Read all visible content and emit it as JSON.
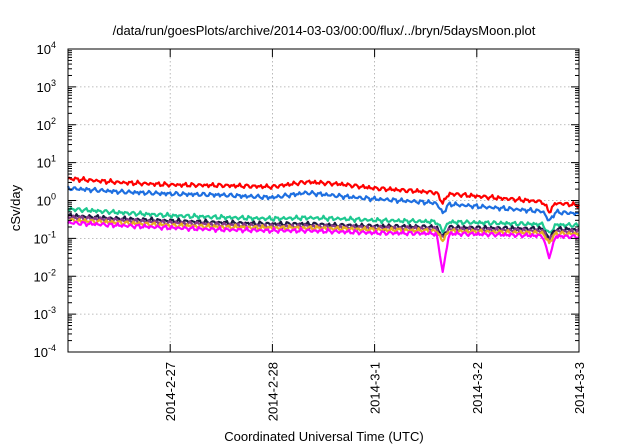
{
  "chart_data": {
    "type": "line",
    "title": "/data/run/goesPlots/archive/2014-03-03/00:00/flux/../bryn/5daysMoon.plot",
    "xlabel": "Coordinated Universal Time (UTC)",
    "ylabel": "cSv/day",
    "y_scale": "log",
    "ylim": [
      0.0001,
      10000
    ],
    "xlim": [
      "2014-02-26",
      "2014-03-03"
    ],
    "grid": true,
    "legend": "none",
    "y_ticks": [
      {
        "base": "10",
        "exp": "-4"
      },
      {
        "base": "10",
        "exp": "-3"
      },
      {
        "base": "10",
        "exp": "-2"
      },
      {
        "base": "10",
        "exp": "-1"
      },
      {
        "base": "10",
        "exp": "0"
      },
      {
        "base": "10",
        "exp": "1"
      },
      {
        "base": "10",
        "exp": "2"
      },
      {
        "base": "10",
        "exp": "3"
      },
      {
        "base": "10",
        "exp": "4"
      }
    ],
    "x_ticks": [
      {
        "date": "2014-02-27",
        "label": "2014-2-27"
      },
      {
        "date": "2014-02-28",
        "label": "2014-2-28"
      },
      {
        "date": "2014-03-01",
        "label": "2014-3-1"
      },
      {
        "date": "2014-03-02",
        "label": "2014-3-2"
      },
      {
        "date": "2014-03-03",
        "label": "2014-3-3"
      }
    ],
    "dips": [
      {
        "date": "2014-03-01 16:00",
        "min": 0.013
      },
      {
        "date": "2014-03-02 17:00",
        "min": 0.03
      }
    ],
    "series": [
      {
        "color": "#ff0000",
        "x": [
          "2014-02-26 00:00",
          "2014-02-26 12:00",
          "2014-02-27 00:00",
          "2014-02-27 12:00",
          "2014-02-28 00:00",
          "2014-02-28 08:00",
          "2014-02-28 16:00",
          "2014-03-01 00:00",
          "2014-03-01 12:00",
          "2014-03-02 00:00",
          "2014-03-02 12:00",
          "2014-03-03 00:00"
        ],
        "y": [
          3.8,
          3.0,
          2.6,
          2.5,
          2.3,
          3.1,
          2.7,
          2.1,
          1.7,
          1.3,
          1.0,
          0.75
        ]
      },
      {
        "color": "#1e6fe0",
        "x": [
          "2014-02-26 00:00",
          "2014-02-26 12:00",
          "2014-02-27 00:00",
          "2014-02-27 12:00",
          "2014-02-28 00:00",
          "2014-02-28 08:00",
          "2014-02-28 16:00",
          "2014-03-01 00:00",
          "2014-03-01 12:00",
          "2014-03-02 00:00",
          "2014-03-02 12:00",
          "2014-03-03 00:00"
        ],
        "y": [
          2.1,
          1.7,
          1.5,
          1.4,
          1.2,
          1.6,
          1.3,
          1.1,
          0.9,
          0.7,
          0.55,
          0.45
        ]
      },
      {
        "color": "#1ec890",
        "x": [
          "2014-02-26 00:00",
          "2014-02-26 12:00",
          "2014-02-27 00:00",
          "2014-02-27 12:00",
          "2014-02-28 00:00",
          "2014-02-28 08:00",
          "2014-02-28 16:00",
          "2014-03-01 00:00",
          "2014-03-01 12:00",
          "2014-03-02 00:00",
          "2014-03-02 12:00",
          "2014-03-03 00:00"
        ],
        "y": [
          0.6,
          0.48,
          0.4,
          0.36,
          0.33,
          0.35,
          0.33,
          0.3,
          0.28,
          0.26,
          0.24,
          0.22
        ]
      },
      {
        "color": "#1a1a40",
        "x": [
          "2014-02-26 00:00",
          "2014-02-26 12:00",
          "2014-02-27 00:00",
          "2014-02-27 12:00",
          "2014-02-28 00:00",
          "2014-02-28 08:00",
          "2014-02-28 16:00",
          "2014-03-01 00:00",
          "2014-03-01 12:00",
          "2014-03-02 00:00",
          "2014-03-02 12:00",
          "2014-03-03 00:00"
        ],
        "y": [
          0.4,
          0.33,
          0.29,
          0.26,
          0.24,
          0.24,
          0.22,
          0.21,
          0.2,
          0.19,
          0.18,
          0.17
        ]
      },
      {
        "color": "#8a3a8a",
        "x": [
          "2014-02-26 00:00",
          "2014-02-26 12:00",
          "2014-02-27 00:00",
          "2014-02-27 12:00",
          "2014-02-28 00:00",
          "2014-02-28 08:00",
          "2014-02-28 16:00",
          "2014-03-01 00:00",
          "2014-03-01 12:00",
          "2014-03-02 00:00",
          "2014-03-02 12:00",
          "2014-03-03 00:00"
        ],
        "y": [
          0.36,
          0.3,
          0.26,
          0.23,
          0.21,
          0.21,
          0.2,
          0.19,
          0.18,
          0.17,
          0.16,
          0.15
        ]
      },
      {
        "color": "#e8b020",
        "x": [
          "2014-02-26 00:00",
          "2014-02-26 12:00",
          "2014-02-27 00:00",
          "2014-02-27 12:00",
          "2014-02-28 00:00",
          "2014-02-28 08:00",
          "2014-02-28 16:00",
          "2014-03-01 00:00",
          "2014-03-01 12:00",
          "2014-03-02 00:00",
          "2014-03-02 12:00",
          "2014-03-03 00:00"
        ],
        "y": [
          0.3,
          0.26,
          0.22,
          0.2,
          0.19,
          0.19,
          0.18,
          0.17,
          0.16,
          0.15,
          0.14,
          0.13
        ]
      },
      {
        "color": "#ff00ff",
        "x": [
          "2014-02-26 00:00",
          "2014-02-26 12:00",
          "2014-02-27 00:00",
          "2014-02-27 12:00",
          "2014-02-28 00:00",
          "2014-02-28 08:00",
          "2014-02-28 16:00",
          "2014-03-01 00:00",
          "2014-03-01 12:00",
          "2014-03-02 00:00",
          "2014-03-02 12:00",
          "2014-03-03 00:00"
        ],
        "y": [
          0.26,
          0.22,
          0.19,
          0.17,
          0.16,
          0.16,
          0.15,
          0.14,
          0.135,
          0.13,
          0.12,
          0.11
        ]
      }
    ]
  }
}
